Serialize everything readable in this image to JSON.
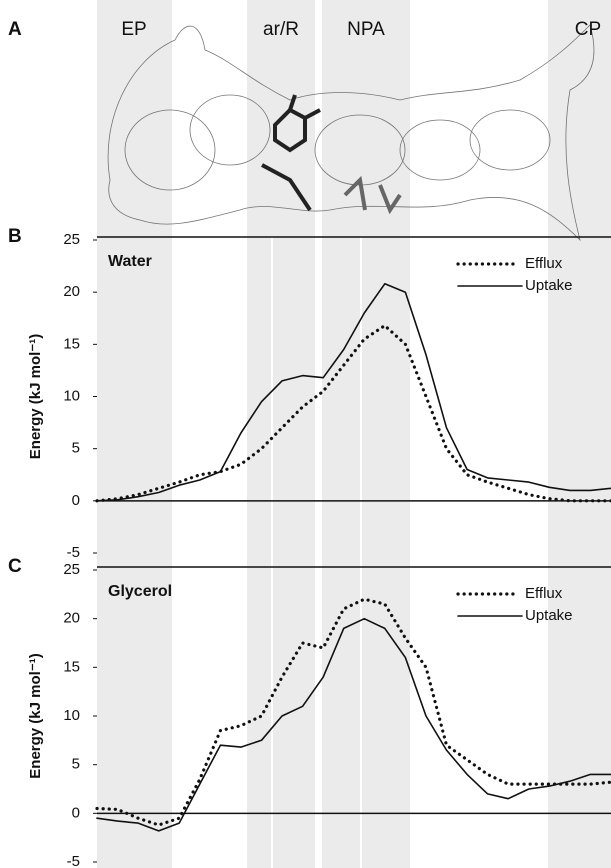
{
  "panel_a": {
    "panel_label": "A",
    "regions": [
      "EP",
      "ar/R",
      "NPA",
      "CP"
    ]
  },
  "chart_data": [
    {
      "type": "line",
      "panel_label": "B",
      "title": "Water",
      "y_label": "Energy (kJ mol⁻¹)",
      "x": [
        0,
        4,
        8,
        12,
        16,
        20,
        24,
        28,
        32,
        36,
        40,
        44,
        48,
        52,
        56,
        60,
        64,
        68,
        72,
        76,
        80,
        84,
        88,
        92,
        96,
        100
      ],
      "xlim": [
        0,
        100
      ],
      "ylim": [
        -5,
        25
      ],
      "yticks": [
        -5,
        0,
        5,
        10,
        15,
        20,
        25
      ],
      "legend": "upper right",
      "series": [
        {
          "name": "Efflux",
          "color": "#111111",
          "dash": "dotted",
          "values": [
            0,
            0.2,
            0.6,
            1.2,
            1.8,
            2.5,
            2.8,
            3.5,
            5,
            7,
            9,
            10.5,
            13,
            15.5,
            16.8,
            15,
            10,
            5,
            2.5,
            1.8,
            1.2,
            0.6,
            0.2,
            0,
            0,
            0
          ]
        },
        {
          "name": "Uptake",
          "color": "#111111",
          "dash": "solid",
          "values": [
            0,
            0.1,
            0.4,
            0.8,
            1.5,
            2,
            2.8,
            6.5,
            9.5,
            11.5,
            12,
            11.8,
            14.5,
            18,
            20.8,
            20,
            14,
            7,
            3,
            2.2,
            2,
            1.8,
            1.3,
            1,
            1,
            1.2
          ]
        }
      ]
    },
    {
      "type": "line",
      "panel_label": "C",
      "title": "Glycerol",
      "y_label": "Energy (kJ mol⁻¹)",
      "x": [
        0,
        4,
        8,
        12,
        16,
        20,
        24,
        28,
        32,
        36,
        40,
        44,
        48,
        52,
        56,
        60,
        64,
        68,
        72,
        76,
        80,
        84,
        88,
        92,
        96,
        100
      ],
      "xlim": [
        0,
        100
      ],
      "ylim": [
        -5,
        25
      ],
      "yticks": [
        -5,
        0,
        5,
        10,
        15,
        20,
        25
      ],
      "legend": "upper right",
      "series": [
        {
          "name": "Efflux",
          "color": "#111111",
          "dash": "dotted",
          "values": [
            0.5,
            0.4,
            -0.5,
            -1.2,
            -0.5,
            3.5,
            8.5,
            9,
            10,
            14,
            17.5,
            17,
            21,
            22,
            21.5,
            18,
            15,
            7,
            5.5,
            4,
            3,
            3,
            3,
            3,
            3,
            3.2
          ]
        },
        {
          "name": "Uptake",
          "color": "#111111",
          "dash": "solid",
          "values": [
            -0.5,
            -0.8,
            -1,
            -1.8,
            -1,
            3,
            7,
            6.8,
            7.5,
            10,
            11,
            14,
            19,
            20,
            19,
            16,
            10,
            6.5,
            4,
            2,
            1.5,
            2.5,
            2.8,
            3.3,
            4,
            4
          ]
        }
      ]
    }
  ]
}
